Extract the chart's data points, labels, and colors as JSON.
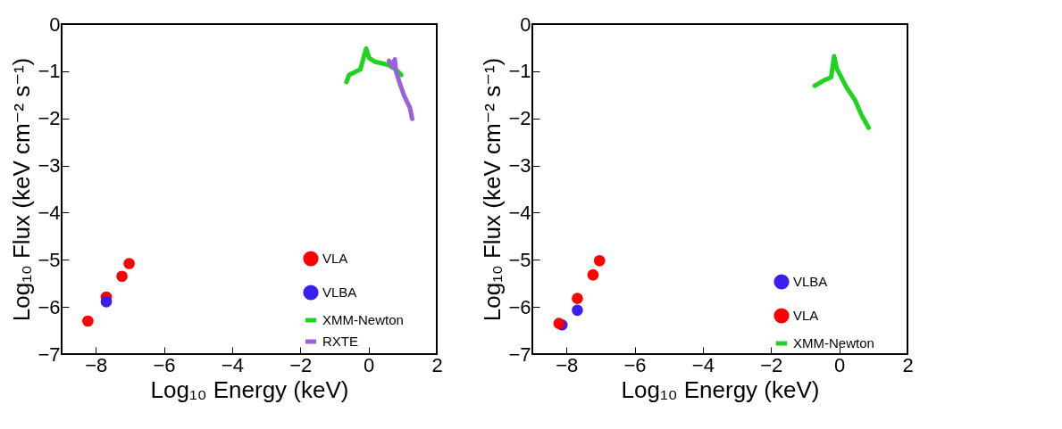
{
  "chart_data": [
    {
      "type": "scatter",
      "xlabel": "Log₁₀ Energy (keV)",
      "ylabel": "Log₁₀ Flux (keV cm⁻² s⁻¹)",
      "xlim": [
        -9,
        2
      ],
      "ylim": [
        -7,
        0
      ],
      "xticks": [
        -8,
        -6,
        -4,
        -2,
        0,
        2
      ],
      "yticks": [
        -7,
        -6,
        -5,
        -4,
        -3,
        -2,
        -1,
        0
      ],
      "legend": "bottom right",
      "series": [
        {
          "name": "VLA",
          "marker": "circle",
          "color": "#ff0000",
          "x": [
            -8.23,
            -7.69,
            -7.23,
            -7.02
          ],
          "values": [
            -6.3,
            -5.79,
            -5.35,
            -5.08
          ]
        },
        {
          "name": "VLBA",
          "marker": "circle",
          "color": "#3a1ff0",
          "x": [
            -7.69
          ],
          "values": [
            -5.89
          ]
        },
        {
          "name": "XMM-Newton",
          "type": "line",
          "color": "#1fd41f",
          "x": [
            -0.65,
            -0.57,
            -0.24,
            -0.07,
            0.02,
            0.19,
            0.56,
            0.8,
            0.96
          ],
          "values": [
            -1.23,
            -1.08,
            -0.96,
            -0.52,
            -0.72,
            -0.8,
            -0.86,
            -0.96,
            -1.08
          ]
        },
        {
          "name": "RXTE",
          "type": "line",
          "color": "#9b5fe0",
          "x": [
            0.6,
            0.68,
            0.77,
            0.8,
            0.93,
            1.05,
            1.21,
            1.28
          ],
          "values": [
            -0.78,
            -0.9,
            -0.75,
            -0.99,
            -1.29,
            -1.53,
            -1.77,
            -2.01
          ]
        }
      ]
    },
    {
      "type": "scatter",
      "xlabel": "Log₁₀ Energy (keV)",
      "ylabel": "Log₁₀ Flux (keV cm⁻² s⁻¹)",
      "xlim": [
        -9,
        2
      ],
      "ylim": [
        -7,
        0
      ],
      "xticks": [
        -8,
        -6,
        -4,
        -2,
        0,
        2
      ],
      "yticks": [
        -7,
        -6,
        -5,
        -4,
        -3,
        -2,
        -1,
        0
      ],
      "legend": "bottom right",
      "series": [
        {
          "name": "VLBA",
          "marker": "circle",
          "color": "#3a1ff0",
          "x": [
            -8.13,
            -7.68
          ],
          "values": [
            -6.38,
            -6.07
          ]
        },
        {
          "name": "VLA",
          "marker": "circle",
          "color": "#ff0000",
          "x": [
            -8.22,
            -7.68,
            -7.22,
            -7.03
          ],
          "values": [
            -6.35,
            -5.82,
            -5.32,
            -5.02
          ]
        },
        {
          "name": "XMM-Newton",
          "type": "line",
          "color": "#1fd41f",
          "x": [
            -0.72,
            -0.44,
            -0.24,
            -0.15,
            -0.07,
            0.21,
            0.46,
            0.66,
            0.86
          ],
          "values": [
            -1.31,
            -1.19,
            -1.13,
            -0.68,
            -0.95,
            -1.34,
            -1.61,
            -1.94,
            -2.2
          ]
        }
      ]
    }
  ]
}
